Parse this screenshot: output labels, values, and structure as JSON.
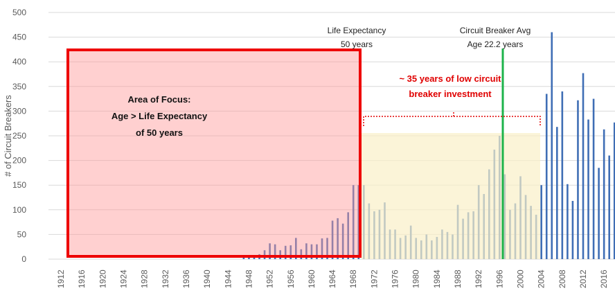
{
  "chart_data": {
    "type": "bar",
    "y_label": "# of Circuit Breakers",
    "categories": [
      "1912",
      null,
      null,
      null,
      "1916",
      null,
      null,
      null,
      "1920",
      null,
      null,
      null,
      "1924",
      null,
      null,
      null,
      "1928",
      null,
      null,
      null,
      "1932",
      null,
      null,
      null,
      "1936",
      null,
      null,
      null,
      "1940",
      null,
      null,
      null,
      "1944",
      null,
      null,
      null,
      "1948",
      null,
      null,
      null,
      "1952",
      null,
      null,
      null,
      "1956",
      null,
      null,
      null,
      "1960",
      null,
      null,
      null,
      "1964",
      null,
      null,
      null,
      "1968",
      null,
      null,
      null,
      "1972",
      null,
      null,
      null,
      "1976",
      null,
      null,
      null,
      "1980",
      null,
      null,
      null,
      "1984",
      null,
      null,
      null,
      "1988",
      null,
      null,
      null,
      "1992",
      null,
      null,
      null,
      "1996",
      null,
      null,
      null,
      "2000",
      null,
      null,
      null,
      "2004",
      null,
      null,
      null,
      "2008",
      null,
      null,
      null,
      "2012",
      null,
      null,
      null,
      "2016",
      null,
      null
    ],
    "values": [
      0,
      0,
      0,
      0,
      0,
      0,
      0,
      0,
      0,
      0,
      0,
      0,
      0,
      0,
      0,
      0,
      0,
      0,
      0,
      0,
      0,
      0,
      0,
      0,
      0,
      0,
      0,
      0,
      0,
      0,
      0,
      0,
      0,
      0,
      0,
      5,
      8,
      8,
      10,
      18,
      32,
      30,
      18,
      27,
      28,
      43,
      20,
      32,
      30,
      30,
      42,
      43,
      78,
      83,
      72,
      95,
      150,
      150,
      150,
      113,
      97,
      100,
      115,
      60,
      60,
      43,
      48,
      68,
      43,
      38,
      50,
      38,
      45,
      60,
      55,
      50,
      110,
      82,
      95,
      97,
      150,
      132,
      182,
      222,
      250,
      172,
      100,
      113,
      168,
      130,
      108,
      90,
      150,
      335,
      460,
      268,
      340,
      152,
      118,
      322,
      377,
      283,
      325,
      185,
      263,
      210,
      277
    ],
    "color": "#3f6eb5",
    "ylim": [
      0,
      500
    ],
    "yticks": [
      0,
      50,
      100,
      150,
      200,
      250,
      300,
      350,
      400,
      450,
      500
    ],
    "grid": true,
    "annotations": {
      "focus": [
        "Area of Focus:",
        "Age > Life Expectancy",
        "of 50 years"
      ],
      "life": [
        "Life Expectancy",
        "50 years"
      ],
      "avg": [
        "Circuit Breaker Avg",
        "Age 22.2 years"
      ],
      "low": [
        "~ 35 years of low circuit",
        "breaker investment"
      ]
    }
  }
}
